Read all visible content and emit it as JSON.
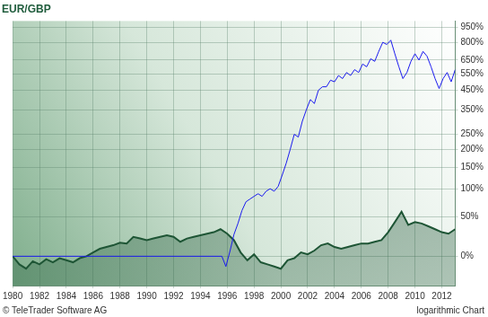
{
  "chart_data": {
    "type": "line",
    "title": "EUR/GBP",
    "annotations": [
      "© TeleTrader Software AG",
      "logarithmic Chart"
    ],
    "log": "y",
    "grid": true,
    "xlim": [
      1980,
      2013
    ],
    "xticks": [
      1980,
      1982,
      1984,
      1986,
      1988,
      1990,
      1992,
      1994,
      1996,
      1998,
      2000,
      2002,
      2004,
      2006,
      2008,
      2010,
      2012
    ],
    "ylim": [
      -26,
      1020
    ],
    "yticks": [
      {
        "value": 0,
        "label": "0%"
      },
      {
        "value": 50,
        "label": "50%"
      },
      {
        "value": 100,
        "label": "100%"
      },
      {
        "value": 150,
        "label": "150%"
      },
      {
        "value": 200,
        "label": "200%"
      },
      {
        "value": 250,
        "label": "250%"
      },
      {
        "value": 350,
        "label": "350%"
      },
      {
        "value": 450,
        "label": "450%"
      },
      {
        "value": 550,
        "label": "550%"
      },
      {
        "value": 650,
        "label": "650%"
      },
      {
        "value": 800,
        "label": "800%"
      },
      {
        "value": 950,
        "label": "950%"
      }
    ],
    "series": [
      {
        "type": "area",
        "color": "#1e5535",
        "x": [
          1980,
          1980.5,
          1981,
          1981.5,
          1982,
          1982.5,
          1983,
          1983.5,
          1984,
          1984.5,
          1985,
          1985.5,
          1986,
          1986.5,
          1987,
          1987.5,
          1988,
          1988.5,
          1989,
          1989.5,
          1990,
          1990.5,
          1991,
          1991.5,
          1992,
          1992.5,
          1993,
          1993.5,
          1994,
          1994.5,
          1995,
          1995.5,
          1996,
          1996.5,
          1997,
          1997.5,
          1998,
          1998.5,
          1999,
          1999.5,
          2000,
          2000.5,
          2001,
          2001.5,
          2002,
          2002.5,
          2003,
          2003.5,
          2004,
          2004.5,
          2005,
          2005.5,
          2006,
          2006.5,
          2007,
          2007.5,
          2008,
          2008.5,
          2009,
          2009.5,
          2010,
          2010.5,
          2011,
          2011.5,
          2012,
          2012.5,
          2013
        ],
        "values": [
          0,
          -8,
          -12,
          -5,
          -8,
          -3,
          -6,
          -2,
          -4,
          -6,
          -2,
          0,
          4,
          8,
          10,
          12,
          15,
          14,
          22,
          20,
          18,
          20,
          22,
          24,
          22,
          16,
          20,
          22,
          24,
          26,
          28,
          32,
          26,
          18,
          4,
          -4,
          2,
          -6,
          -8,
          -10,
          -12,
          -4,
          -2,
          4,
          2,
          6,
          12,
          14,
          10,
          8,
          10,
          12,
          14,
          14,
          16,
          18,
          28,
          42,
          58,
          38,
          42,
          40,
          36,
          32,
          28,
          26,
          32
        ]
      },
      {
        "type": "line",
        "color": "#1a1aee",
        "x": [
          1980,
          1995.6,
          1995.9,
          1996.2,
          1996.5,
          1996.8,
          1997.1,
          1997.4,
          1997.7,
          1998,
          1998.3,
          1998.6,
          1998.9,
          1999.2,
          1999.5,
          1999.8,
          2000.1,
          2000.4,
          2000.7,
          2001,
          2001.3,
          2001.6,
          2001.9,
          2002.2,
          2002.5,
          2002.8,
          2003.1,
          2003.4,
          2003.7,
          2004,
          2004.3,
          2004.6,
          2004.9,
          2005.2,
          2005.5,
          2005.8,
          2006.1,
          2006.4,
          2006.7,
          2007,
          2007.3,
          2007.6,
          2007.9,
          2008.2,
          2008.5,
          2008.8,
          2009.1,
          2009.4,
          2009.7,
          2010,
          2010.3,
          2010.6,
          2010.9,
          2011.2,
          2011.5,
          2011.8,
          2012.1,
          2012.4,
          2012.7,
          2013
        ],
        "values": [
          0,
          0,
          -10,
          5,
          25,
          40,
          60,
          75,
          80,
          85,
          90,
          85,
          95,
          100,
          95,
          105,
          130,
          160,
          200,
          250,
          240,
          300,
          350,
          400,
          380,
          450,
          470,
          470,
          510,
          500,
          540,
          520,
          560,
          540,
          580,
          560,
          620,
          600,
          660,
          640,
          720,
          800,
          780,
          820,
          700,
          600,
          520,
          560,
          640,
          700,
          650,
          720,
          680,
          600,
          520,
          460,
          520,
          560,
          500,
          580
        ]
      }
    ]
  }
}
